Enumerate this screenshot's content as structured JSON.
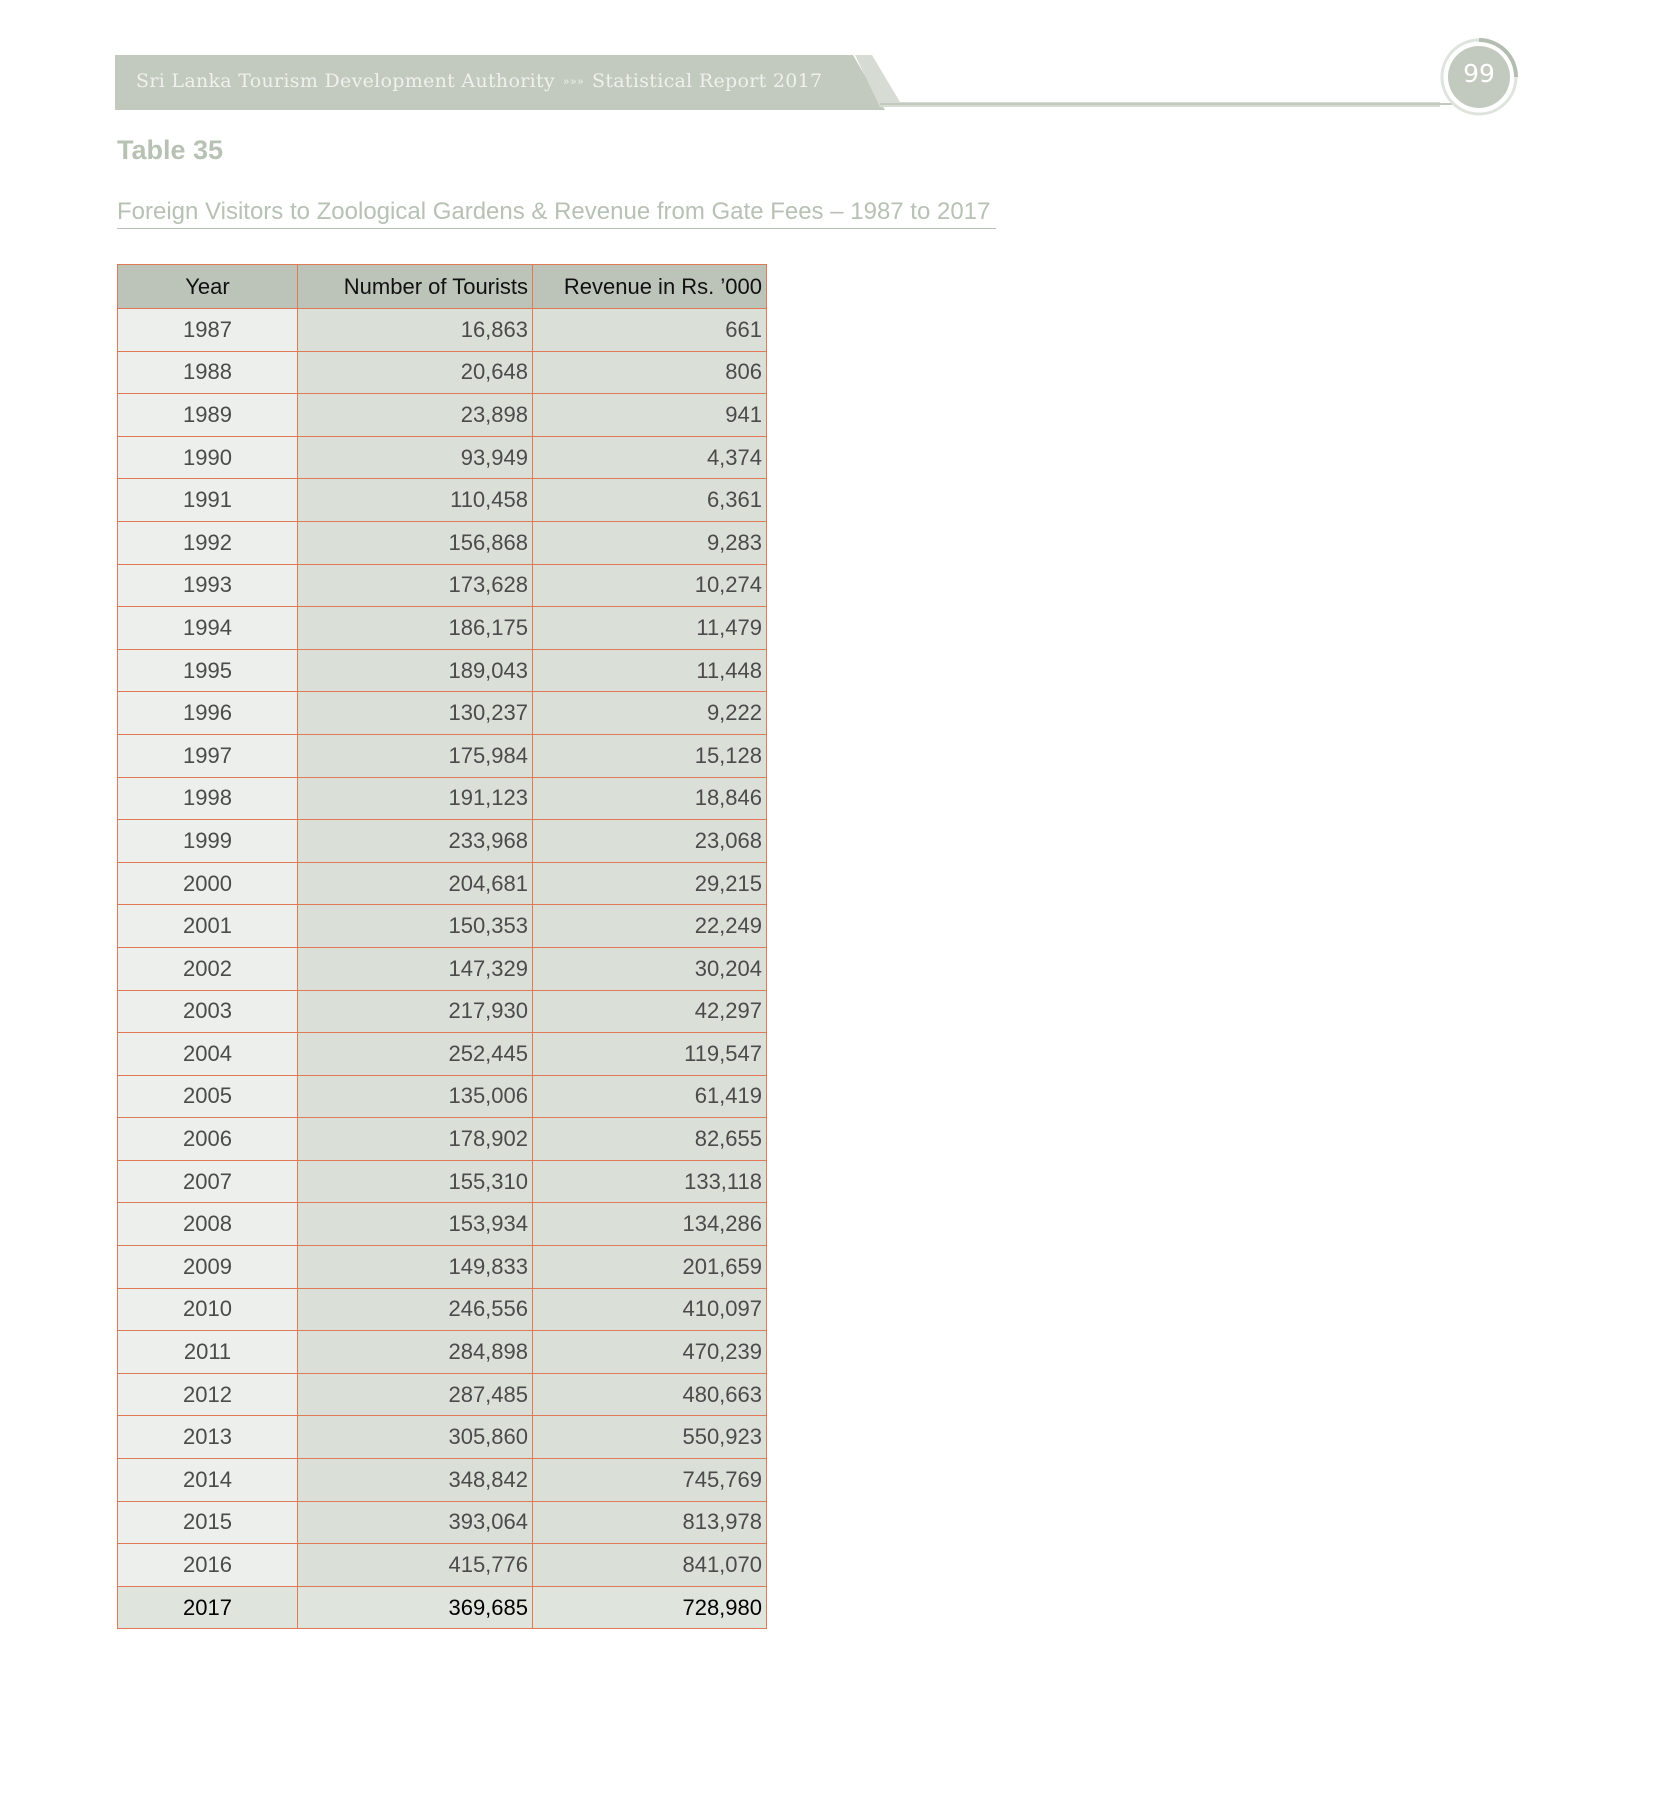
{
  "header": {
    "organization": "Sri Lanka Tourism Development Authority",
    "separator": "»»»",
    "report": "Statistical Report 2017",
    "page_number": "99"
  },
  "table_label": "Table 35",
  "table_title": "Foreign Visitors to Zoological Gardens & Revenue from Gate Fees – 1987 to 2017",
  "table": {
    "columns": [
      "Year",
      "Number of Tourists",
      "Revenue in Rs. ’000"
    ],
    "rows": [
      [
        "1987",
        "16,863",
        "661"
      ],
      [
        "1988",
        "20,648",
        "806"
      ],
      [
        "1989",
        "23,898",
        "941"
      ],
      [
        "1990",
        "93,949",
        "4,374"
      ],
      [
        "1991",
        "110,458",
        "6,361"
      ],
      [
        "1992",
        "156,868",
        "9,283"
      ],
      [
        "1993",
        "173,628",
        "10,274"
      ],
      [
        "1994",
        "186,175",
        "11,479"
      ],
      [
        "1995",
        "189,043",
        "11,448"
      ],
      [
        "1996",
        "130,237",
        "9,222"
      ],
      [
        "1997",
        "175,984",
        "15,128"
      ],
      [
        "1998",
        "191,123",
        "18,846"
      ],
      [
        "1999",
        "233,968",
        "23,068"
      ],
      [
        "2000",
        "204,681",
        "29,215"
      ],
      [
        "2001",
        "150,353",
        "22,249"
      ],
      [
        "2002",
        "147,329",
        "30,204"
      ],
      [
        "2003",
        "217,930",
        "42,297"
      ],
      [
        "2004",
        "252,445",
        "119,547"
      ],
      [
        "2005",
        "135,006",
        "61,419"
      ],
      [
        "2006",
        "178,902",
        "82,655"
      ],
      [
        "2007",
        "155,310",
        "133,118"
      ],
      [
        "2008",
        "153,934",
        "134,286"
      ],
      [
        "2009",
        "149,833",
        "201,659"
      ],
      [
        "2010",
        "246,556",
        "410,097"
      ],
      [
        "2011",
        "284,898",
        "470,239"
      ],
      [
        "2012",
        "287,485",
        "480,663"
      ],
      [
        "2013",
        "305,860",
        "550,923"
      ],
      [
        "2014",
        "348,842",
        "745,769"
      ],
      [
        "2015",
        "393,064",
        "813,978"
      ],
      [
        "2016",
        "415,776",
        "841,070"
      ],
      [
        "2017",
        "369,685",
        "728,980"
      ]
    ]
  },
  "colors": {
    "header_band": "#c2cabf",
    "title_text": "#b7c1b4",
    "table_border": "#e07a56",
    "header_row_fill": "#bcc4b9",
    "year_cell_fill": "#ecefeb",
    "number_cell_fill": "#dae0d8"
  }
}
